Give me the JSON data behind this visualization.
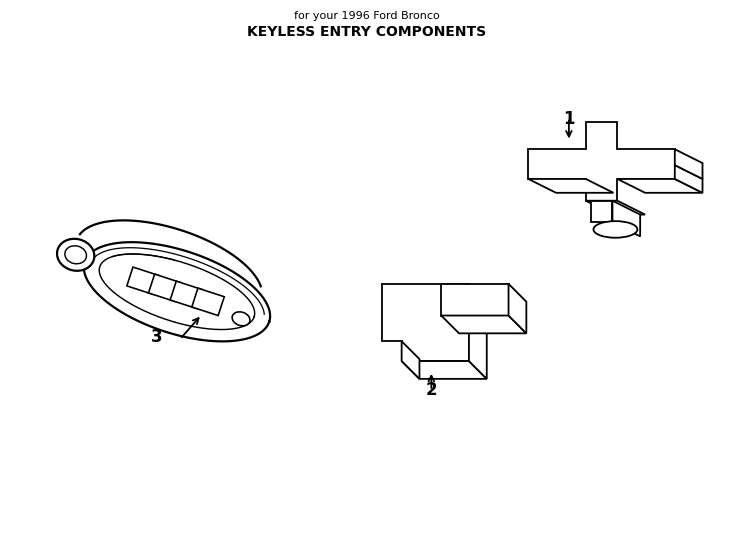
{
  "title": "KEYLESS ENTRY COMPONENTS",
  "subtitle": "for your 1996 Ford Bronco",
  "background_color": "#ffffff",
  "line_color": "#000000",
  "line_width": 1.3
}
